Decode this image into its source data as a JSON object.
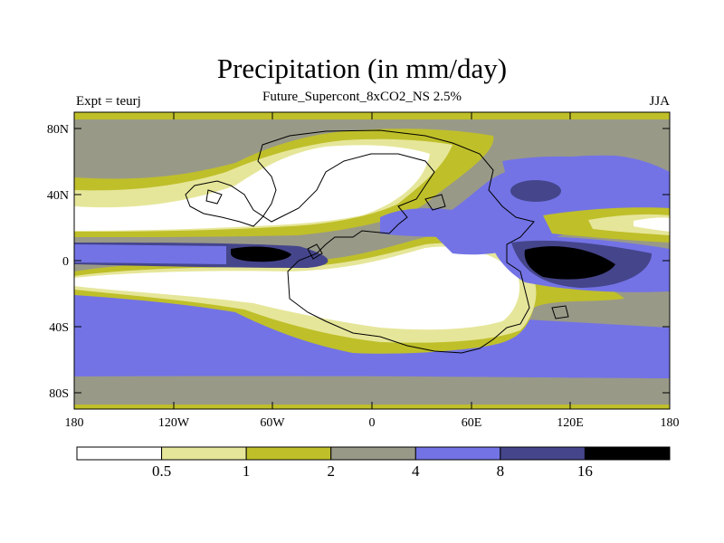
{
  "title": "Precipitation (in mm/day)",
  "subtitle": "Future_Supercont_8xCO2_NS 2.5%",
  "left_label": "Expt = teurj",
  "right_label": "JJA",
  "axes": {
    "y_ticks": [
      "80N",
      "40N",
      "0",
      "40S",
      "80S"
    ],
    "x_ticks": [
      "180",
      "120W",
      "60W",
      "0",
      "60E",
      "120E",
      "180"
    ]
  },
  "colorbar": {
    "colors": [
      "#ffffff",
      "#e6e69a",
      "#bfbf2a",
      "#999988",
      "#7373e6",
      "#45458c",
      "#000000"
    ],
    "labels": [
      "0.5",
      "1",
      "2",
      "4",
      "8",
      "16"
    ]
  },
  "legend_levels_mm_day": [
    0.5,
    1,
    2,
    4,
    8,
    16
  ]
}
